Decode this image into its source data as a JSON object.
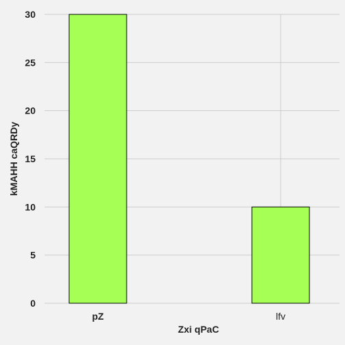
{
  "chart_data": {
    "type": "bar",
    "categories": [
      "pZ",
      "lfv"
    ],
    "values": [
      30,
      10
    ],
    "title": "",
    "xlabel": "Zxi qPaC",
    "ylabel": "kMAHH caQRDy",
    "ylim": [
      0,
      30
    ],
    "yticks": [
      0,
      5,
      10,
      15,
      20,
      25,
      30
    ],
    "grid": true,
    "bar_color": "#a6ff55",
    "bar_edge_color": "#000000",
    "background_color": "#f2f2f2",
    "grid_color": "#cccccc"
  }
}
